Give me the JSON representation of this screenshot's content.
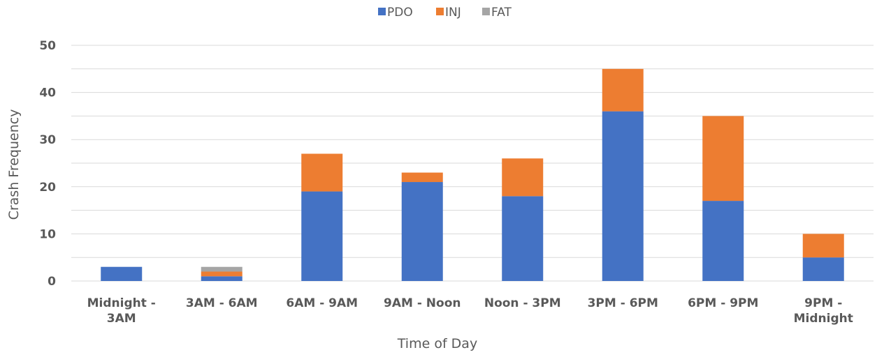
{
  "chart_data": {
    "type": "bar",
    "stacked": true,
    "categories": [
      [
        "Midnight -",
        "3AM"
      ],
      [
        "3AM - 6AM"
      ],
      [
        "6AM - 9AM"
      ],
      [
        "9AM - Noon"
      ],
      [
        "Noon - 3PM"
      ],
      [
        "3PM - 6PM"
      ],
      [
        "6PM - 9PM"
      ],
      [
        "9PM -",
        "Midnight"
      ]
    ],
    "series": [
      {
        "name": "PDO",
        "color": "#4472c4",
        "values": [
          3,
          1,
          19,
          21,
          18,
          36,
          17,
          5
        ]
      },
      {
        "name": "INJ",
        "color": "#ed7d31",
        "values": [
          0,
          1,
          8,
          2,
          8,
          9,
          18,
          5
        ]
      },
      {
        "name": "FAT",
        "color": "#a5a5a5",
        "values": [
          0,
          1,
          0,
          0,
          0,
          0,
          0,
          0
        ]
      }
    ],
    "title": "",
    "xlabel": "Time of Day",
    "ylabel": "Crash Frequency",
    "ylim": [
      0,
      50
    ],
    "yticks": [
      0,
      10,
      20,
      30,
      40,
      50
    ],
    "grid_step": 5,
    "grid": true,
    "legend_position": "top"
  }
}
